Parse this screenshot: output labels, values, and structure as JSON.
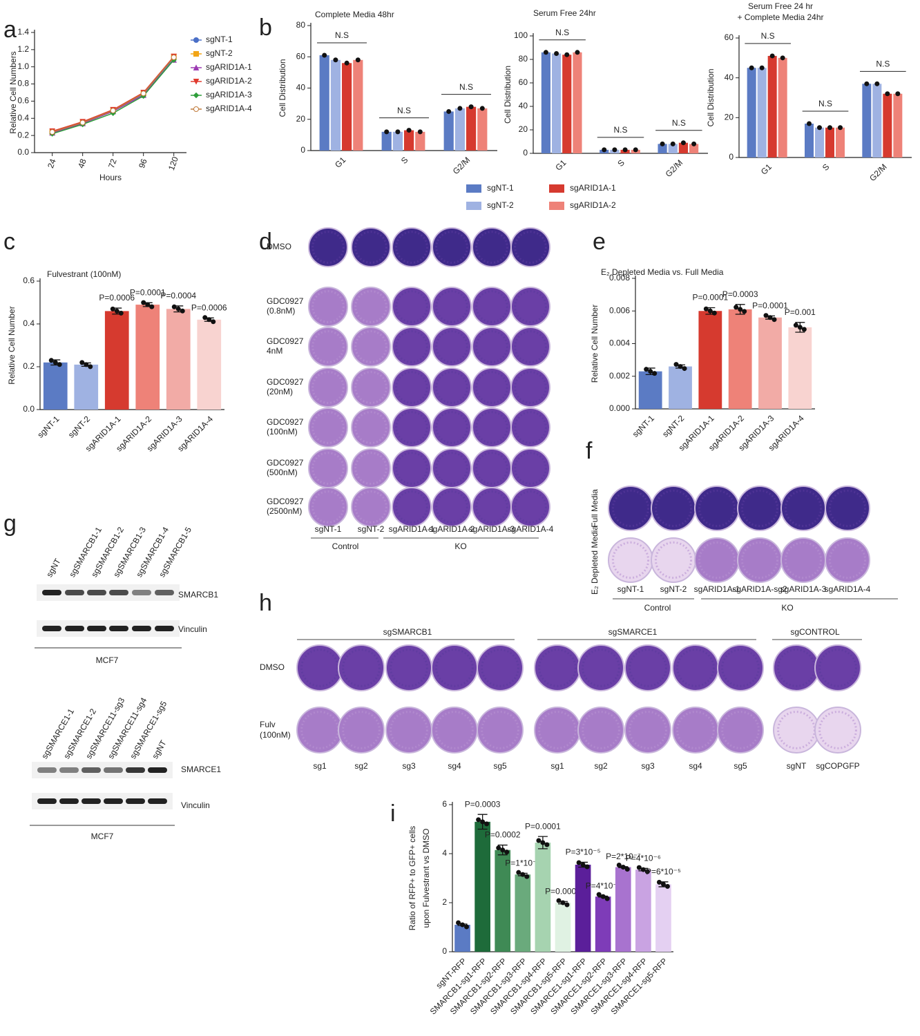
{
  "panels": [
    "a",
    "b",
    "c",
    "d",
    "e",
    "f",
    "g",
    "h",
    "i"
  ],
  "chart_data": [
    {
      "type": "line",
      "xlabel": "Hours",
      "ylabel": "Relative Cell Numbers",
      "x": [
        24,
        48,
        72,
        96,
        120
      ],
      "xlim": [
        10,
        130
      ],
      "xticks": [
        24,
        48,
        72,
        96,
        120
      ],
      "ylim": [
        0,
        1.4
      ],
      "yticks": [
        {
          "value": 0,
          "label": "0.0"
        },
        0.2,
        0.4,
        0.6,
        0.8,
        {
          "value": 1,
          "label": "1.0"
        },
        1.2,
        1.4
      ],
      "legend": "upper right",
      "series": [
        {
          "name": "sgNT-1",
          "color": "#4a6fc7",
          "marker": "circle",
          "values": [
            0.24,
            0.35,
            0.48,
            0.68,
            1.1
          ]
        },
        {
          "name": "sgNT-2",
          "color": "#f2a516",
          "marker": "square",
          "values": [
            0.24,
            0.35,
            0.49,
            0.69,
            1.12
          ]
        },
        {
          "name": "sgARID1A-1",
          "color": "#9c3bb3",
          "marker": "triangle-up",
          "values": [
            0.23,
            0.34,
            0.48,
            0.67,
            1.08
          ]
        },
        {
          "name": "sgARID1A-2",
          "color": "#e03a2e",
          "marker": "triangle-down",
          "values": [
            0.25,
            0.36,
            0.5,
            0.7,
            1.12
          ]
        },
        {
          "name": "sgARID1A-3",
          "color": "#2e9e3a",
          "marker": "diamond",
          "values": [
            0.22,
            0.33,
            0.46,
            0.66,
            1.08
          ]
        },
        {
          "name": "sgARID1A-4",
          "color": "#c07a3a",
          "marker": "circle-open",
          "values": [
            0.24,
            0.35,
            0.49,
            0.69,
            1.11
          ]
        }
      ]
    },
    {
      "type": "bar",
      "title": "Complete Media 48hr",
      "ylabel": "Cell Distribution",
      "categories": [
        "G1",
        "S",
        "G2/M"
      ],
      "annotations": [
        "N.S",
        "N.S",
        "N.S"
      ],
      "ylim": [
        0,
        80
      ],
      "yticks": [
        0,
        20,
        40,
        60,
        80
      ],
      "legend": "bottom",
      "series": [
        {
          "name": "sgNT-1",
          "color": "#5b7bc4",
          "values": [
            61,
            12,
            25
          ]
        },
        {
          "name": "sgNT-2",
          "color": "#9fb2e2",
          "values": [
            58,
            12,
            27
          ]
        },
        {
          "name": "sgARID1A-1",
          "color": "#d63a2f",
          "values": [
            56,
            13,
            28
          ]
        },
        {
          "name": "sgARID1A-2",
          "color": "#ee8278",
          "values": [
            58,
            12,
            27
          ]
        }
      ]
    },
    {
      "type": "bar",
      "title": "Serum Free 24hr",
      "ylabel": "Cell Distribution",
      "categories": [
        "G1",
        "S",
        "G2/M"
      ],
      "annotations": [
        "N.S",
        "N.S",
        "N.S"
      ],
      "ylim": [
        0,
        100
      ],
      "yticks": [
        0,
        20,
        40,
        60,
        80,
        100
      ],
      "series": [
        {
          "color": "#5b7bc4",
          "values": [
            86,
            3,
            8
          ]
        },
        {
          "color": "#9fb2e2",
          "values": [
            85,
            3,
            8
          ]
        },
        {
          "color": "#d63a2f",
          "values": [
            84,
            3,
            9
          ]
        },
        {
          "color": "#ee8278",
          "values": [
            86,
            3,
            8
          ]
        }
      ]
    },
    {
      "type": "bar",
      "title": [
        "Serum Free 24 hr",
        "+ Complete Media 24hr"
      ],
      "ylabel": "Cell Distribution",
      "categories": [
        "G1",
        "S",
        "G2/M"
      ],
      "annotations": [
        "N.S",
        "N.S",
        "N.S"
      ],
      "ylim": [
        0,
        60
      ],
      "yticks": [
        0,
        20,
        40,
        60
      ],
      "series": [
        {
          "color": "#5b7bc4",
          "values": [
            45,
            17,
            37
          ]
        },
        {
          "color": "#9fb2e2",
          "values": [
            45,
            15,
            37
          ]
        },
        {
          "color": "#d63a2f",
          "values": [
            51,
            15,
            32
          ]
        },
        {
          "color": "#ee8278",
          "values": [
            50,
            15,
            32
          ]
        }
      ]
    },
    {
      "type": "bar",
      "title": "Fulvestrant (100nM)",
      "ylabel": "Relative Cell Number",
      "categories": [
        "sgNT-1",
        "sgNT-2",
        "sgARID1A-1",
        "sgARID1A-2",
        "sgARID1A-3",
        "sgARID1A-4"
      ],
      "values": [
        0.22,
        0.21,
        0.46,
        0.49,
        0.47,
        0.42
      ],
      "errors": [
        0.012,
        0.008,
        0.014,
        0.009,
        0.014,
        0.008
      ],
      "colors": [
        "#5b7bc4",
        "#9fb2e2",
        "#d63a2f",
        "#ee8278",
        "#f2aba6",
        "#f8d3d0"
      ],
      "annotations": [
        null,
        null,
        "P=0.0006",
        "P=0.0001",
        "P=0.0004",
        "P=0.0006"
      ],
      "ylim": [
        0,
        0.6
      ],
      "yticks": [
        {
          "value": 0,
          "label": "0.0"
        },
        0.2,
        0.4,
        0.6
      ]
    },
    {
      "type": "bar",
      "title": "E₂ Depleted Media vs. Full Media",
      "ylabel": "Relative Cell Number",
      "categories": [
        "sgNT-1",
        "sgNT-2",
        "sgARID1A-1",
        "sgARID1A-2",
        "sgARID1A-3",
        "sgARID1A-4"
      ],
      "values": [
        0.0023,
        0.0026,
        0.006,
        0.0061,
        0.0056,
        0.005
      ],
      "errors": [
        0.0002,
        0.0001,
        0.0002,
        0.0003,
        0.0001,
        0.0003
      ],
      "colors": [
        "#5b7bc4",
        "#9fb2e2",
        "#d63a2f",
        "#ee8278",
        "#f2aba6",
        "#f8d3d0"
      ],
      "annotations": [
        null,
        null,
        "P=0.0001",
        "P=0.0003",
        "P=0.0001",
        "P=0.001"
      ],
      "ylim": [
        0,
        0.008
      ],
      "yticks": [
        {
          "value": 0,
          "label": "0.000"
        },
        {
          "value": 0.002,
          "label": "0.002"
        },
        {
          "value": 0.004,
          "label": "0.004"
        },
        {
          "value": 0.006,
          "label": "0.006"
        },
        {
          "value": 0.008,
          "label": "0.008"
        }
      ]
    },
    {
      "type": "bar",
      "ylabel": [
        "Ratio of RFP+ to GFP+ cells",
        "upon Fulvestrant  vs DMSO"
      ],
      "categories": [
        "sgNT-RFP",
        "SMARCB1-sg1-RFP",
        "SMARCB1-sg2-RFP",
        "SMARCB1-sg3-RFP",
        "SMARCB1-sg4-RFP",
        "SMARCB1-sg5-RFP",
        "SMARCE1-sg1-RFP",
        "SMARCE1-sg2-RFP",
        "SMARCE1-sg3-RFP",
        "SMARCE1-sg4-RFP",
        "SMARCE1-sg5-RFP"
      ],
      "values": [
        1.1,
        5.3,
        4.15,
        3.15,
        4.45,
        2.0,
        3.55,
        2.25,
        3.45,
        3.35,
        2.75
      ],
      "errors": [
        0.03,
        0.3,
        0.2,
        0.05,
        0.25,
        0.05,
        0.1,
        0.02,
        0.02,
        0.05,
        0.1
      ],
      "colors": [
        "#5b7bc4",
        "#1e6b3a",
        "#3f8a55",
        "#6aaa7c",
        "#a6d3b0",
        "#e0f2e3",
        "#5b1f9a",
        "#7e3cb8",
        "#a873cf",
        "#c9a3e2",
        "#e4d0f2"
      ],
      "annotations": [
        null,
        "P=0.0003",
        "P=0.0002",
        "P=1*10⁻⁵",
        "P=0.0001",
        "P=0.0002",
        "P=3*10⁻⁵",
        "P=4*10⁻⁶",
        "P=2*10⁻⁷",
        "P=4*10⁻⁶",
        "P=6*10⁻⁵"
      ],
      "ylim": [
        0,
        6
      ],
      "yticks": [
        0,
        2,
        4,
        6
      ]
    }
  ],
  "plates_d": {
    "rows": [
      [
        "DMSO"
      ],
      [
        "GDC0927",
        "(0.8nM)"
      ],
      [
        "GDC0927",
        "4nM"
      ],
      [
        "GDC0927",
        "(20nM)"
      ],
      [
        "GDC0927",
        "(100nM)"
      ],
      [
        "GDC0927",
        "(500nM)"
      ],
      [
        "GDC0927",
        "(2500nM)"
      ]
    ],
    "columns": [
      "sgNT-1",
      "sgNT-2",
      "sgARID1A-1",
      "sgARID1A-2",
      "sgARID1A-3",
      "sgARID1A-4"
    ],
    "groups": [
      "Control",
      "KO"
    ]
  },
  "plates_f": {
    "rows": [
      "Full Media",
      "E₂ Depleted Media"
    ],
    "columns": [
      "sgNT-1",
      "sgNT-2",
      "sgARID1A-1",
      "sgARID1A-sg2",
      "sgARID1A-3",
      "sgARID1A-4"
    ],
    "groups": [
      "Control",
      "KO"
    ]
  },
  "plates_h": {
    "rows": [
      [
        "DMSO"
      ],
      [
        "Fulv",
        "(100nM)"
      ]
    ],
    "groups": [
      "sgSMARCB1",
      "sgSMARCE1",
      "sgCONTROL"
    ],
    "columns": [
      "sg1",
      "sg2",
      "sg3",
      "sg4",
      "sg5",
      "sg1",
      "sg2",
      "sg3",
      "sg4",
      "sg5",
      "sgNT",
      "sgCOPGFP"
    ]
  },
  "blots_g": [
    {
      "lanes": [
        "sgNT",
        "sgSMARCB1-1",
        "sgSMARCB1-2",
        "sgSMARCB1-3",
        "sgSMARCB1-4",
        "sgSMARCB1-5"
      ],
      "bands": [
        "SMARCB1",
        "Vinculin"
      ],
      "cell_line": "MCF7"
    },
    {
      "lanes": [
        "sgSMARCE1-1",
        "sgSMARCE1-2",
        "sgSMARCE11-sg3",
        "sgSMARCE11-sg4",
        "sgSMARCE1-sg5",
        "sgNT"
      ],
      "bands": [
        "SMARCE1",
        "Vinculin"
      ],
      "cell_line": "MCF7"
    }
  ]
}
